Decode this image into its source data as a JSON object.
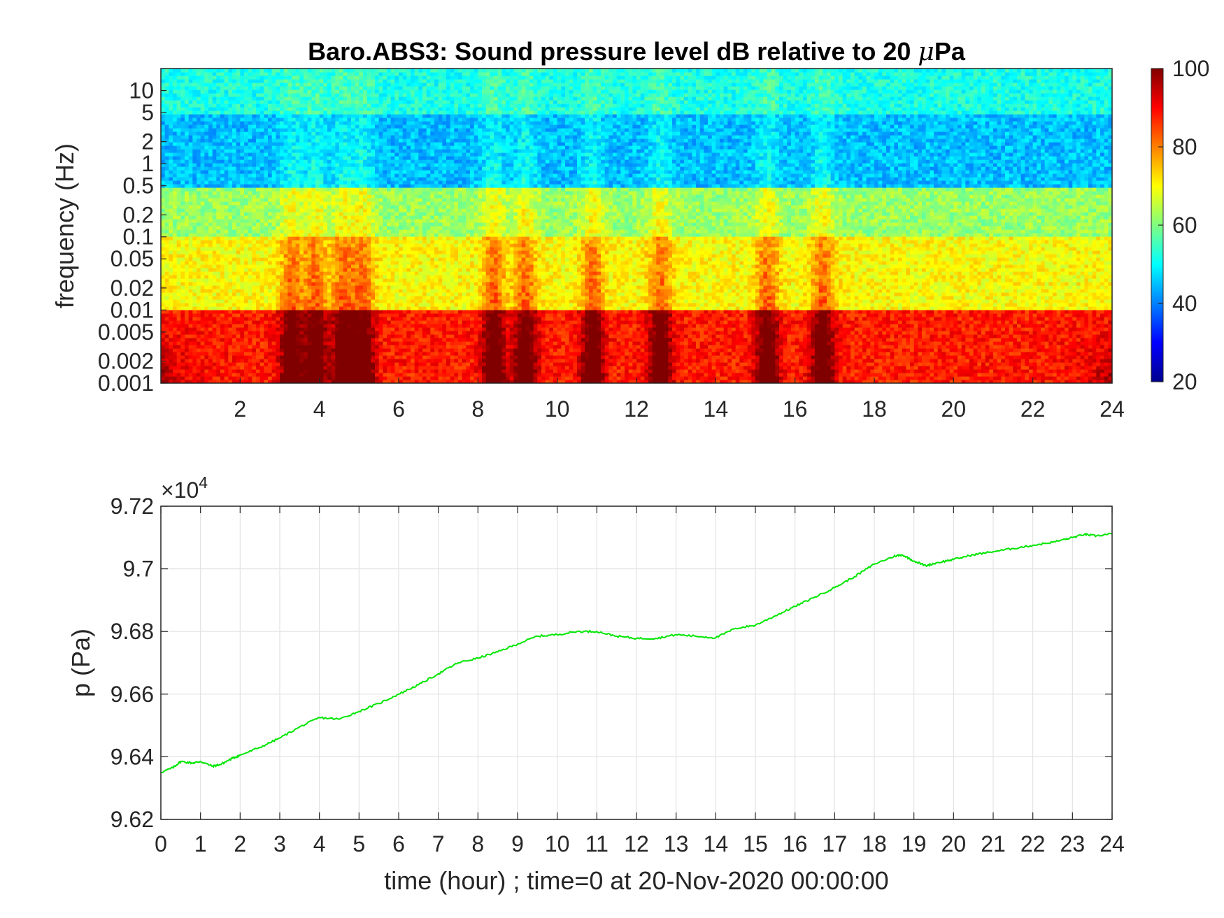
{
  "chart_data": [
    {
      "type": "heatmap",
      "title_main": "Baro.ABS3: Sound pressure level dB relative to 20 ",
      "title_mu": "μ",
      "title_unit": "Pa",
      "ylabel": "frequency (Hz)",
      "xlabel": "",
      "x_ticks": [
        "2",
        "4",
        "6",
        "8",
        "10",
        "12",
        "14",
        "16",
        "18",
        "20",
        "22",
        "24"
      ],
      "x_tick_values": [
        2,
        4,
        6,
        8,
        10,
        12,
        14,
        16,
        18,
        20,
        22,
        24
      ],
      "xlim": [
        0,
        24
      ],
      "y_scale": "log",
      "ylim": [
        0.001,
        20
      ],
      "y_ticks": [
        "10",
        "5",
        "2",
        "1",
        "0.5",
        "0.2",
        "0.1",
        "0.05",
        "0.02",
        "0.01",
        "0.005",
        "0.002",
        "0.001"
      ],
      "y_tick_values": [
        10,
        5,
        2,
        1,
        0.5,
        0.2,
        0.1,
        0.05,
        0.02,
        0.01,
        0.005,
        0.002,
        0.001
      ],
      "colormap": "jet",
      "colorbar": {
        "range": [
          20,
          100
        ],
        "ticks": [
          "100",
          "80",
          "60",
          "40",
          "20"
        ],
        "tick_values": [
          100,
          80,
          60,
          40,
          20
        ]
      },
      "level_bands": [
        {
          "freq_range": [
            5,
            20
          ],
          "approx_db": 52
        },
        {
          "freq_range": [
            0.5,
            5
          ],
          "approx_db": 45
        },
        {
          "freq_range": [
            0.1,
            0.5
          ],
          "approx_db": 62
        },
        {
          "freq_range": [
            0.01,
            0.1
          ],
          "approx_db": 70
        },
        {
          "freq_range": [
            0.001,
            0.01
          ],
          "approx_db": 88
        }
      ],
      "burst_hours": [
        3.3,
        3.9,
        4.6,
        5.1,
        8.4,
        9.2,
        10.9,
        12.6,
        15.3,
        16.7
      ]
    },
    {
      "type": "line",
      "ylabel": "p (Pa)",
      "xlabel": "time (hour) ; time=0 at 20-Nov-2020 00:00:00",
      "exponent_label": "×10",
      "exponent_power": "4",
      "xlim": [
        0,
        24
      ],
      "ylim": [
        96200,
        97200
      ],
      "x_ticks": [
        "0",
        "1",
        "2",
        "3",
        "4",
        "5",
        "6",
        "7",
        "8",
        "9",
        "10",
        "11",
        "12",
        "13",
        "14",
        "15",
        "16",
        "17",
        "18",
        "19",
        "20",
        "21",
        "22",
        "23",
        "24"
      ],
      "x_tick_values": [
        0,
        1,
        2,
        3,
        4,
        5,
        6,
        7,
        8,
        9,
        10,
        11,
        12,
        13,
        14,
        15,
        16,
        17,
        18,
        19,
        20,
        21,
        22,
        23,
        24
      ],
      "y_ticks": [
        "9.72",
        "9.7",
        "9.68",
        "9.66",
        "9.64",
        "9.62"
      ],
      "y_tick_values": [
        97200,
        97000,
        96800,
        96600,
        96400,
        96200
      ],
      "grid": true,
      "series": [
        {
          "color": "#00e600",
          "x": [
            0,
            0.3,
            0.5,
            0.8,
            1.0,
            1.3,
            1.5,
            1.8,
            2.0,
            2.5,
            3.0,
            3.5,
            4.0,
            4.5,
            5.0,
            5.5,
            6.0,
            6.5,
            7.0,
            7.5,
            8.0,
            8.5,
            9.0,
            9.5,
            10.0,
            10.5,
            11.0,
            11.5,
            12.0,
            12.5,
            13.0,
            13.5,
            14.0,
            14.5,
            15.0,
            15.5,
            16.0,
            16.5,
            17.0,
            17.5,
            18.0,
            18.5,
            18.7,
            19.0,
            19.3,
            19.6,
            20.0,
            20.5,
            21.0,
            21.5,
            22.0,
            22.5,
            23.0,
            23.3,
            23.6,
            24.0
          ],
          "y": [
            96350,
            96365,
            96385,
            96380,
            96385,
            96370,
            96375,
            96395,
            96405,
            96430,
            96460,
            96495,
            96525,
            96520,
            96545,
            96570,
            96600,
            96630,
            96665,
            96700,
            96715,
            96735,
            96760,
            96785,
            96790,
            96800,
            96800,
            96785,
            96778,
            96778,
            96790,
            96785,
            96780,
            96810,
            96820,
            96850,
            96880,
            96910,
            96940,
            96975,
            97015,
            97040,
            97045,
            97025,
            97010,
            97020,
            97030,
            97045,
            97055,
            97065,
            97075,
            97085,
            97100,
            97110,
            97105,
            97112
          ]
        }
      ]
    }
  ]
}
